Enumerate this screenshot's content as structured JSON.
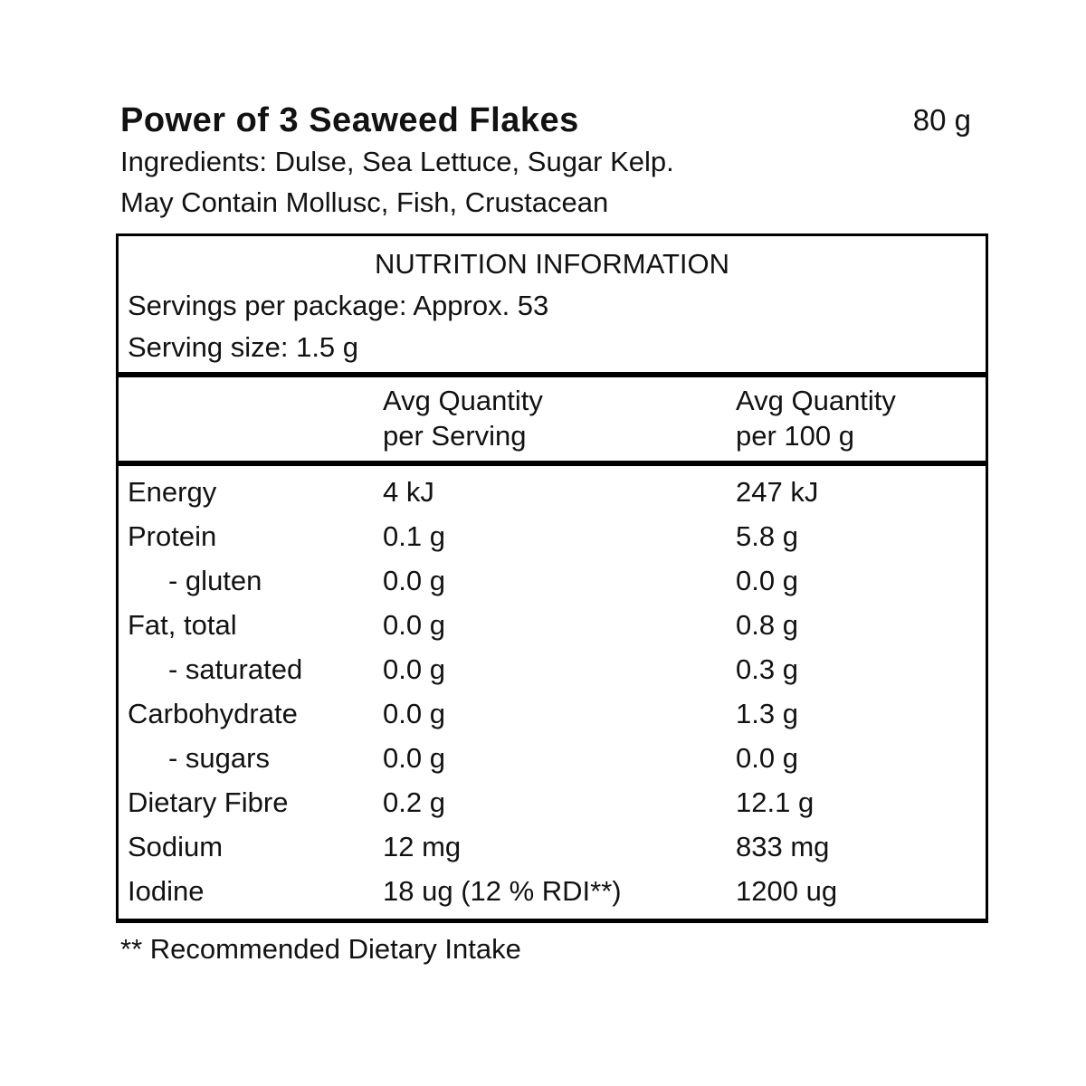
{
  "product": {
    "title": "Power of 3 Seaweed Flakes",
    "net_weight": "80 g",
    "ingredients": "Ingredients: Dulse, Sea Lettuce, Sugar Kelp.",
    "allergen": "May Contain Mollusc, Fish, Crustacean"
  },
  "nutrition_table": {
    "title": "NUTRITION INFORMATION",
    "servings_per_package": "Servings per package: Approx. 53",
    "serving_size": "Serving size: 1.5 g",
    "col_headers": {
      "per_serving": {
        "line1": "Avg Quantity",
        "line2": "per Serving"
      },
      "per_100g": {
        "line1": "Avg Quantity",
        "line2": "per 100 g"
      }
    },
    "rows": [
      {
        "nutrient": "Energy",
        "per_serving": "4 kJ",
        "per_100g": "247 kJ"
      },
      {
        "nutrient": "Protein",
        "per_serving": "0.1 g",
        "per_100g": "5.8 g"
      },
      {
        "nutrient": "- gluten",
        "per_serving": "0.0 g",
        "per_100g": "0.0 g"
      },
      {
        "nutrient": "Fat, total",
        "per_serving": "0.0 g",
        "per_100g": "0.8 g"
      },
      {
        "nutrient": "- saturated",
        "per_serving": "0.0 g",
        "per_100g": "0.3 g"
      },
      {
        "nutrient": "Carbohydrate",
        "per_serving": "0.0 g",
        "per_100g": "1.3 g"
      },
      {
        "nutrient": "- sugars",
        "per_serving": "0.0 g",
        "per_100g": "0.0 g"
      },
      {
        "nutrient": "Dietary Fibre",
        "per_serving": "0.2 g",
        "per_100g": "12.1 g"
      },
      {
        "nutrient": "Sodium",
        "per_serving": "12 mg",
        "per_100g": "833 mg"
      },
      {
        "nutrient": "Iodine",
        "per_serving": "18 ug (12 % RDI**)",
        "per_100g": "1200 ug"
      }
    ]
  },
  "footnote": "** Recommended Dietary Intake"
}
